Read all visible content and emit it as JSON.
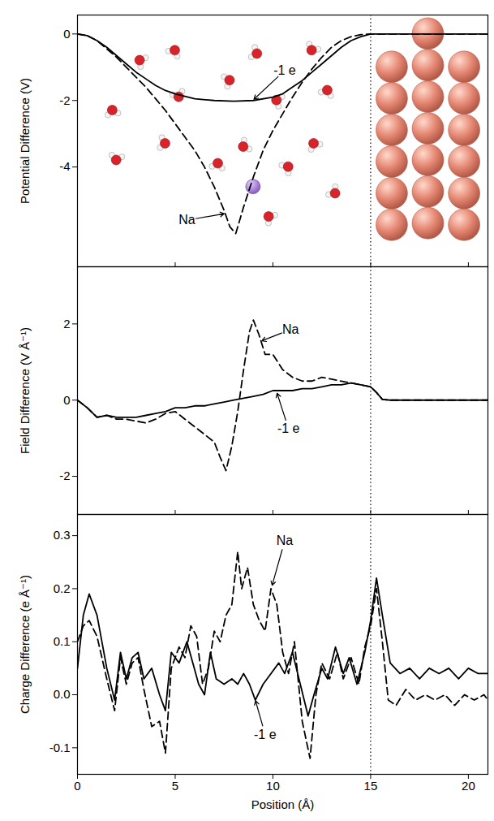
{
  "chart_data": [
    {
      "type": "line",
      "y_label": "Potential Difference (V)",
      "xlim": [
        0,
        21
      ],
      "xticks": [
        0,
        5,
        10,
        15,
        20
      ],
      "ylim": [
        -7,
        0.57
      ],
      "yticks": [
        0,
        -2,
        -4
      ],
      "tick_labels": "y",
      "reference_x": 15,
      "series": [
        {
          "name": "-1 e",
          "color": "#000000",
          "line_style": "solid",
          "x": [
            0,
            0.5,
            1,
            1.5,
            2,
            2.5,
            3,
            3.5,
            4,
            4.5,
            5,
            6,
            7,
            8,
            9,
            10,
            10.5,
            11,
            11.5,
            12,
            12.5,
            13,
            13.5,
            14,
            14.5,
            15,
            21
          ],
          "values": [
            0,
            -0.05,
            -0.2,
            -0.4,
            -0.65,
            -0.9,
            -1.15,
            -1.35,
            -1.55,
            -1.7,
            -1.8,
            -1.95,
            -2.0,
            -2.02,
            -2.0,
            -1.9,
            -1.8,
            -1.6,
            -1.4,
            -1.15,
            -0.9,
            -0.65,
            -0.4,
            -0.2,
            -0.08,
            0,
            0
          ]
        },
        {
          "name": "Na",
          "color": "#000000",
          "line_style": "dashed",
          "x": [
            0,
            0.5,
            1,
            1.5,
            2,
            2.5,
            3,
            3.5,
            4,
            4.5,
            5,
            5.5,
            6,
            6.5,
            7,
            7.5,
            7.8,
            8.1,
            8.5,
            9,
            9.5,
            10,
            10.5,
            11,
            11.5,
            12,
            12.5,
            13,
            13.5,
            14,
            14.5,
            15,
            21
          ],
          "values": [
            0,
            -0.05,
            -0.2,
            -0.45,
            -0.7,
            -1.0,
            -1.3,
            -1.6,
            -1.95,
            -2.3,
            -2.7,
            -3.1,
            -3.5,
            -4.0,
            -4.6,
            -5.3,
            -5.8,
            -6.0,
            -5.2,
            -4.3,
            -3.5,
            -2.9,
            -2.4,
            -1.9,
            -1.45,
            -1.05,
            -0.7,
            -0.4,
            -0.2,
            -0.08,
            -0.02,
            0,
            0
          ]
        }
      ]
    },
    {
      "type": "line",
      "y_label": "Field Difference (V Å⁻¹)",
      "xlim": [
        0,
        21
      ],
      "xticks": [
        0,
        5,
        10,
        15,
        20
      ],
      "ylim": [
        -3,
        3.5
      ],
      "yticks": [
        -2,
        0,
        2
      ],
      "tick_labels": "y",
      "reference_x": 15,
      "series": [
        {
          "name": "-1 e",
          "color": "#000000",
          "line_style": "solid",
          "x": [
            0,
            0.5,
            1,
            1.5,
            2,
            2.5,
            3,
            3.5,
            4,
            4.5,
            5,
            5.5,
            6,
            6.5,
            7,
            7.5,
            8,
            8.5,
            9,
            9.5,
            10,
            10.5,
            11,
            11.5,
            12,
            12.5,
            13,
            13.5,
            14,
            14.5,
            15,
            15.3,
            15.6,
            16,
            21
          ],
          "values": [
            0,
            -0.2,
            -0.45,
            -0.4,
            -0.45,
            -0.45,
            -0.45,
            -0.4,
            -0.35,
            -0.3,
            -0.2,
            -0.2,
            -0.15,
            -0.15,
            -0.1,
            -0.05,
            0,
            0.05,
            0.1,
            0.15,
            0.25,
            0.25,
            0.25,
            0.3,
            0.3,
            0.35,
            0.4,
            0.4,
            0.45,
            0.4,
            0.35,
            0.2,
            0.02,
            0,
            0
          ]
        },
        {
          "name": "Na",
          "color": "#000000",
          "line_style": "dashed",
          "x": [
            0,
            0.5,
            1,
            1.5,
            2,
            2.5,
            3,
            3.5,
            4,
            4.5,
            5,
            5.5,
            6,
            6.5,
            7,
            7.3,
            7.6,
            7.9,
            8.2,
            8.5,
            8.8,
            9,
            9.3,
            9.6,
            10,
            10.5,
            11,
            11.5,
            12,
            12.5,
            13,
            13.5,
            14,
            14.5,
            15,
            15.3,
            15.6,
            16,
            21
          ],
          "values": [
            0,
            -0.2,
            -0.45,
            -0.4,
            -0.5,
            -0.5,
            -0.55,
            -0.6,
            -0.5,
            -0.35,
            -0.3,
            -0.5,
            -0.7,
            -0.9,
            -1.1,
            -1.5,
            -1.85,
            -1.2,
            -0.3,
            0.8,
            1.8,
            2.1,
            1.7,
            1.2,
            1.2,
            0.8,
            0.6,
            0.5,
            0.5,
            0.6,
            0.55,
            0.5,
            0.45,
            0.4,
            0.35,
            0.2,
            0.02,
            0,
            0
          ]
        }
      ]
    },
    {
      "type": "line",
      "x_label": "Position (Å)",
      "y_label": "Charge Difference (e Å⁻¹)",
      "xlim": [
        0,
        21
      ],
      "xticks": [
        0,
        5,
        10,
        15,
        20
      ],
      "ylim": [
        -0.15,
        0.34
      ],
      "yticks": [
        -0.1,
        {
          "value": 0,
          "label": "0.0"
        },
        0.1,
        0.2,
        0.3
      ],
      "reference_x": 15,
      "series": [
        {
          "name": "-1 e",
          "color": "#000000",
          "line_style": "solid",
          "x": [
            0,
            0.3,
            0.6,
            1.0,
            1.5,
            1.9,
            2.2,
            2.5,
            2.8,
            3.1,
            3.4,
            3.8,
            4.2,
            4.5,
            4.8,
            5.2,
            5.6,
            5.9,
            6.2,
            6.5,
            6.8,
            7.1,
            7.5,
            7.9,
            8.2,
            8.5,
            8.8,
            9.1,
            9.5,
            9.9,
            10.3,
            10.6,
            11.0,
            11.4,
            11.8,
            12.1,
            12.5,
            12.8,
            13.2,
            13.6,
            13.9,
            14.3,
            14.7,
            15.0,
            15.3,
            15.6,
            16.0,
            16.5,
            17,
            17.5,
            18,
            18.5,
            19,
            19.5,
            20,
            20.5,
            21
          ],
          "values": [
            0.05,
            0.15,
            0.19,
            0.15,
            0.05,
            -0.01,
            0.08,
            0.03,
            0.07,
            0.08,
            0.03,
            0.05,
            0.0,
            -0.03,
            0.08,
            0.06,
            0.1,
            0.06,
            0.02,
            0.0,
            0.08,
            0.03,
            0.02,
            0.03,
            0.02,
            0.04,
            0.02,
            -0.01,
            0.02,
            0.04,
            0.06,
            0.04,
            0.08,
            0.02,
            -0.04,
            0.0,
            0.05,
            0.03,
            0.09,
            0.04,
            0.07,
            0.02,
            0.08,
            0.14,
            0.22,
            0.15,
            0.06,
            0.04,
            0.05,
            0.03,
            0.05,
            0.04,
            0.05,
            0.03,
            0.05,
            0.04,
            0.04
          ]
        },
        {
          "name": "Na",
          "color": "#000000",
          "line_style": "dashed",
          "x": [
            0,
            0.3,
            0.6,
            1.0,
            1.5,
            1.9,
            2.2,
            2.5,
            2.8,
            3.1,
            3.4,
            3.8,
            4.2,
            4.5,
            4.8,
            5.2,
            5.5,
            5.8,
            6.1,
            6.4,
            6.7,
            7.0,
            7.3,
            7.6,
            7.9,
            8.2,
            8.4,
            8.7,
            9.0,
            9.3,
            9.6,
            9.9,
            10.2,
            10.5,
            10.8,
            11.1,
            11.5,
            11.9,
            12.2,
            12.5,
            12.9,
            13.3,
            13.6,
            14.0,
            14.4,
            14.7,
            15.0,
            15.3,
            15.6,
            15.9,
            16.3,
            16.8,
            17.3,
            17.8,
            18.3,
            18.8,
            19.3,
            19.8,
            20.3,
            20.8,
            21
          ],
          "values": [
            0.1,
            0.13,
            0.14,
            0.11,
            0.03,
            -0.03,
            0.07,
            0.02,
            0.06,
            0.07,
            0.01,
            -0.06,
            -0.05,
            -0.11,
            0.05,
            0.09,
            0.07,
            0.13,
            0.11,
            0.02,
            0.05,
            0.12,
            0.1,
            0.15,
            0.17,
            0.27,
            0.2,
            0.24,
            0.17,
            0.14,
            0.12,
            0.2,
            0.17,
            0.08,
            0.04,
            0.1,
            -0.05,
            -0.12,
            0.0,
            0.06,
            0.03,
            0.08,
            0.03,
            0.07,
            0.02,
            0.09,
            0.13,
            0.2,
            0.1,
            -0.01,
            -0.02,
            0.01,
            -0.01,
            0.0,
            -0.01,
            0.0,
            -0.02,
            0.0,
            -0.01,
            0.0,
            -0.01
          ]
        }
      ]
    }
  ]
}
